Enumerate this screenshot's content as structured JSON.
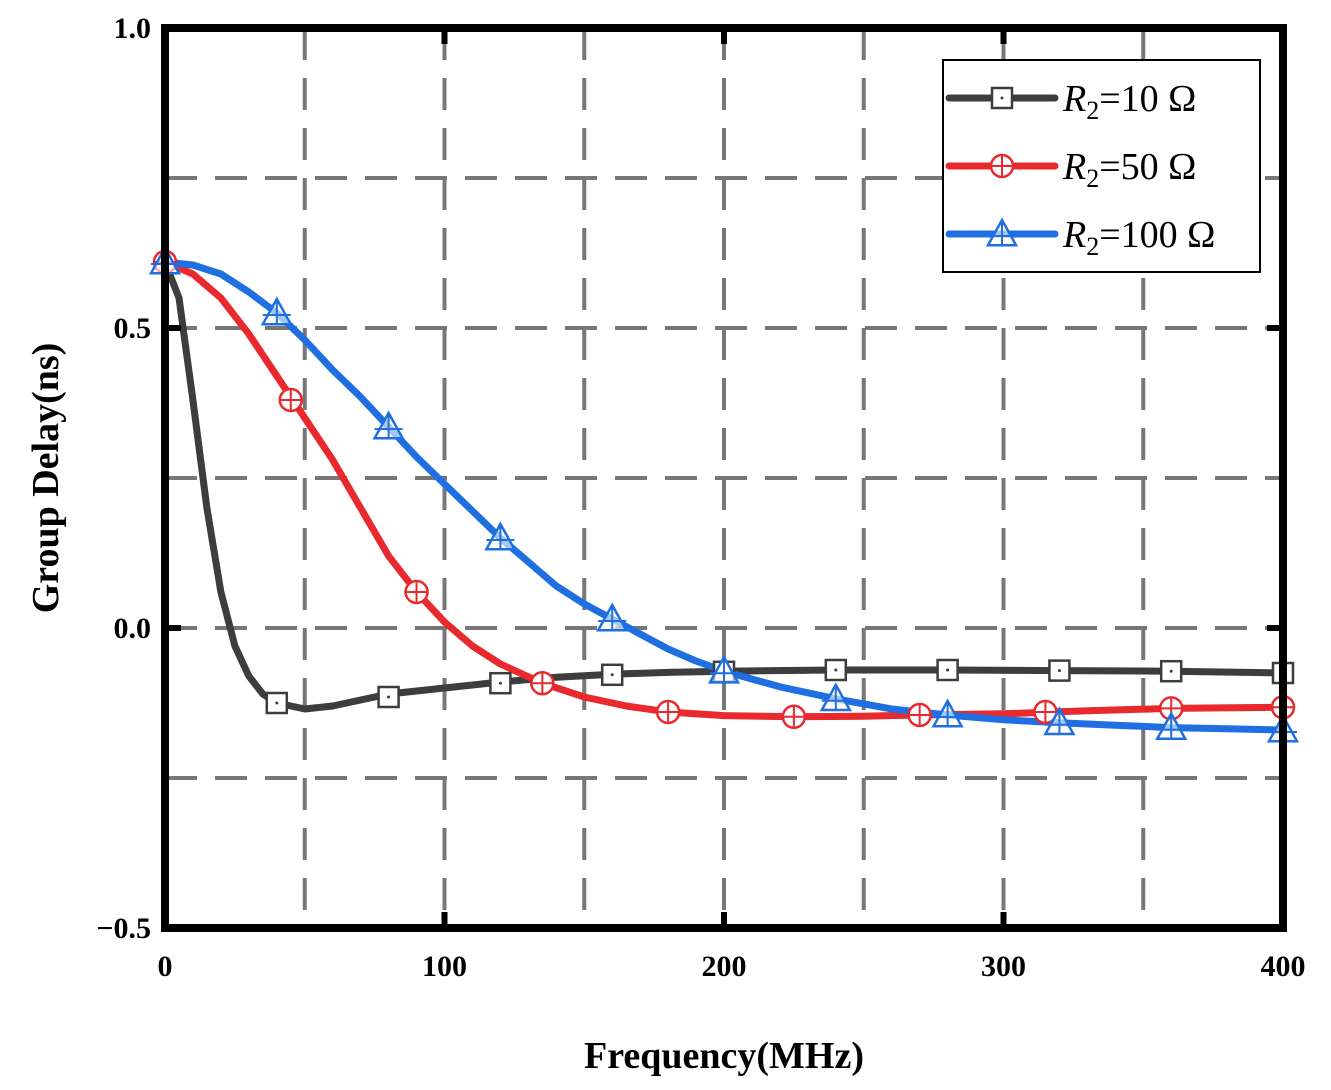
{
  "chart_data": {
    "type": "line",
    "title": "",
    "xlabel": "Frequency(MHz)",
    "ylabel": "Group Delay(ns)",
    "xlim": [
      0,
      400
    ],
    "ylim": [
      -0.5,
      1.0
    ],
    "xticks": [
      0,
      100,
      200,
      300,
      400
    ],
    "xtick_labels": [
      "0",
      "100",
      "200",
      "300",
      "400"
    ],
    "yticks": [
      -0.5,
      0.0,
      0.5,
      1.0
    ],
    "ytick_labels": [
      "−0.5",
      "0.0",
      "0.5",
      "1.0"
    ],
    "grid": "dashed",
    "grid_x": [
      50,
      100,
      150,
      200,
      250,
      300,
      350
    ],
    "grid_y": [
      -0.25,
      0.0,
      0.25,
      0.5,
      0.75
    ],
    "legend_position": "top-right",
    "series": [
      {
        "name": "R2=10 Ω",
        "legend": {
          "var": "R",
          "sub": "2",
          "rest": "=10 Ω"
        },
        "color": "#3d3d3d",
        "marker": "square",
        "curve": [
          [
            0,
            0.61
          ],
          [
            5,
            0.55
          ],
          [
            10,
            0.38
          ],
          [
            15,
            0.2
          ],
          [
            20,
            0.06
          ],
          [
            25,
            -0.03
          ],
          [
            30,
            -0.08
          ],
          [
            35,
            -0.11
          ],
          [
            40,
            -0.125
          ],
          [
            45,
            -0.13
          ],
          [
            50,
            -0.135
          ],
          [
            60,
            -0.13
          ],
          [
            70,
            -0.12
          ],
          [
            80,
            -0.11
          ],
          [
            90,
            -0.105
          ],
          [
            100,
            -0.1
          ],
          [
            120,
            -0.09
          ],
          [
            140,
            -0.082
          ],
          [
            160,
            -0.077
          ],
          [
            180,
            -0.074
          ],
          [
            200,
            -0.072
          ],
          [
            240,
            -0.07
          ],
          [
            280,
            -0.07
          ],
          [
            320,
            -0.071
          ],
          [
            360,
            -0.072
          ],
          [
            400,
            -0.075
          ]
        ],
        "markers": [
          [
            40,
            -0.125
          ],
          [
            80,
            -0.115
          ],
          [
            120,
            -0.092
          ],
          [
            160,
            -0.078
          ],
          [
            200,
            -0.073
          ],
          [
            240,
            -0.07
          ],
          [
            280,
            -0.07
          ],
          [
            320,
            -0.071
          ],
          [
            360,
            -0.072
          ],
          [
            400,
            -0.075
          ]
        ]
      },
      {
        "name": "R2=50 Ω",
        "legend": {
          "var": "R",
          "sub": "2",
          "rest": "=50 Ω"
        },
        "color": "#e8292d",
        "marker": "circle-plus",
        "curve": [
          [
            0,
            0.61
          ],
          [
            10,
            0.59
          ],
          [
            20,
            0.55
          ],
          [
            30,
            0.49
          ],
          [
            40,
            0.42
          ],
          [
            50,
            0.35
          ],
          [
            60,
            0.28
          ],
          [
            70,
            0.2
          ],
          [
            80,
            0.12
          ],
          [
            90,
            0.06
          ],
          [
            100,
            0.01
          ],
          [
            110,
            -0.03
          ],
          [
            120,
            -0.06
          ],
          [
            135,
            -0.092
          ],
          [
            150,
            -0.115
          ],
          [
            165,
            -0.13
          ],
          [
            180,
            -0.14
          ],
          [
            200,
            -0.146
          ],
          [
            225,
            -0.148
          ],
          [
            250,
            -0.147
          ],
          [
            270,
            -0.145
          ],
          [
            300,
            -0.143
          ],
          [
            330,
            -0.138
          ],
          [
            360,
            -0.134
          ],
          [
            400,
            -0.132
          ]
        ],
        "markers": [
          [
            0,
            0.61
          ],
          [
            45,
            0.38
          ],
          [
            90,
            0.06
          ],
          [
            135,
            -0.092
          ],
          [
            180,
            -0.14
          ],
          [
            225,
            -0.148
          ],
          [
            270,
            -0.145
          ],
          [
            315,
            -0.14
          ],
          [
            360,
            -0.134
          ],
          [
            400,
            -0.132
          ]
        ]
      },
      {
        "name": "R2=100 Ω",
        "legend": {
          "var": "R",
          "sub": "2",
          "rest": "=100 Ω"
        },
        "color": "#1f6fe0",
        "marker": "triangle-plus",
        "curve": [
          [
            0,
            0.61
          ],
          [
            10,
            0.605
          ],
          [
            20,
            0.59
          ],
          [
            30,
            0.56
          ],
          [
            40,
            0.525
          ],
          [
            50,
            0.48
          ],
          [
            60,
            0.43
          ],
          [
            70,
            0.385
          ],
          [
            80,
            0.335
          ],
          [
            90,
            0.285
          ],
          [
            100,
            0.24
          ],
          [
            110,
            0.195
          ],
          [
            120,
            0.15
          ],
          [
            130,
            0.11
          ],
          [
            140,
            0.07
          ],
          [
            150,
            0.04
          ],
          [
            160,
            0.015
          ],
          [
            170,
            -0.01
          ],
          [
            180,
            -0.035
          ],
          [
            190,
            -0.055
          ],
          [
            200,
            -0.072
          ],
          [
            220,
            -0.098
          ],
          [
            240,
            -0.118
          ],
          [
            260,
            -0.135
          ],
          [
            280,
            -0.145
          ],
          [
            300,
            -0.153
          ],
          [
            320,
            -0.158
          ],
          [
            340,
            -0.162
          ],
          [
            360,
            -0.166
          ],
          [
            380,
            -0.168
          ],
          [
            400,
            -0.17
          ]
        ],
        "markers": [
          [
            0,
            0.61
          ],
          [
            40,
            0.525
          ],
          [
            80,
            0.335
          ],
          [
            120,
            0.15
          ],
          [
            160,
            0.015
          ],
          [
            200,
            -0.072
          ],
          [
            240,
            -0.118
          ],
          [
            280,
            -0.145
          ],
          [
            320,
            -0.158
          ],
          [
            360,
            -0.166
          ],
          [
            400,
            -0.17
          ]
        ]
      }
    ]
  }
}
